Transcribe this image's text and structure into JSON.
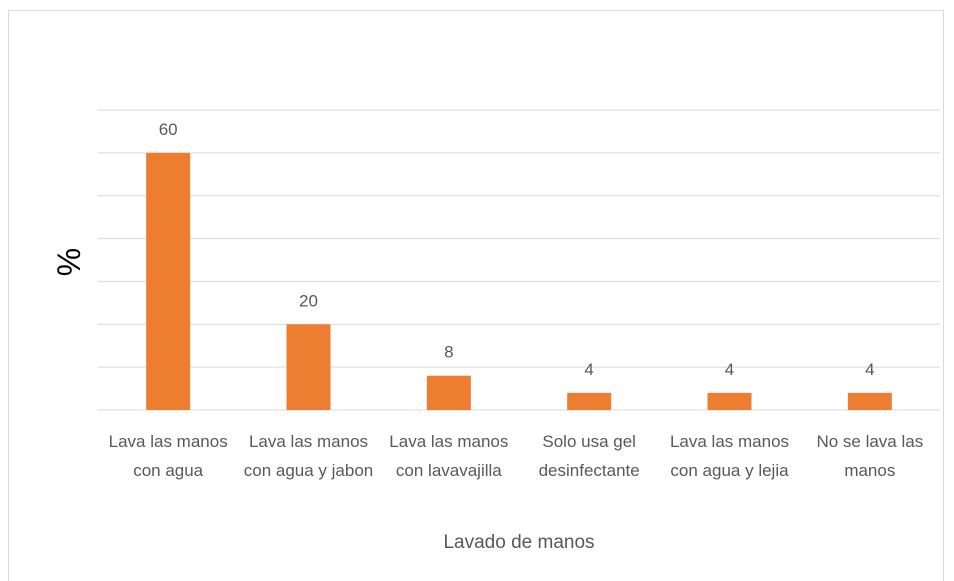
{
  "chart_data": {
    "type": "bar",
    "x_label": "Lavado de manos",
    "y_label": "%",
    "categories": [
      "Lava las manos con agua",
      "Lava las manos con agua y jabon",
      "Lava las manos con lavavajilla",
      "Solo usa gel desinfectante",
      "Lava las manos con agua y lejia",
      "No se lava las manos"
    ],
    "values": [
      60,
      20,
      8,
      4,
      4,
      4
    ],
    "color": "#ed7d31",
    "ylim": [
      0,
      70
    ],
    "yticks": [
      0,
      10,
      20,
      30,
      40,
      50,
      60,
      70
    ],
    "grid": true
  }
}
